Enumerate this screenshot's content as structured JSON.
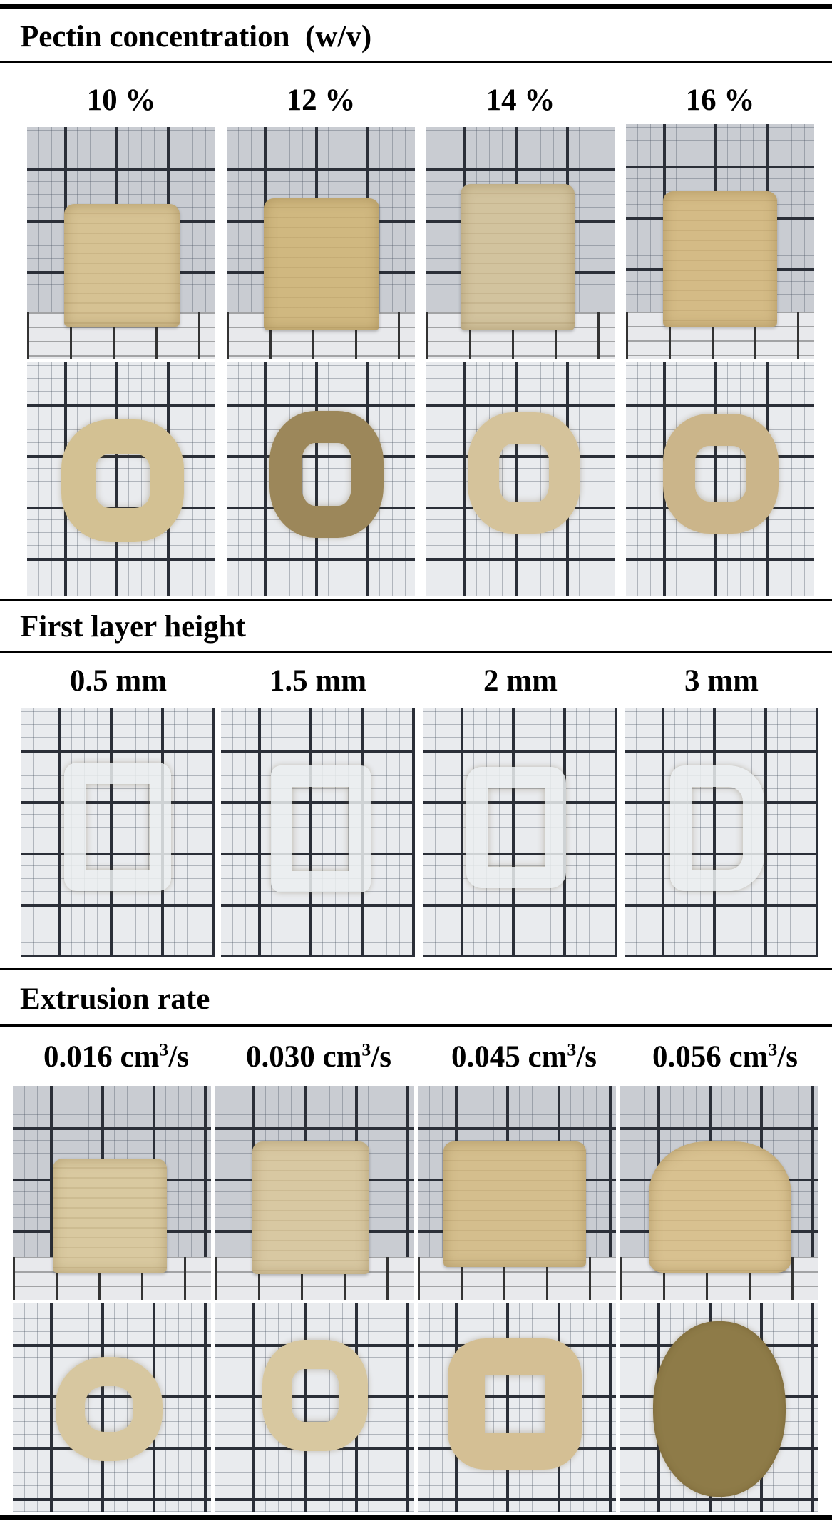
{
  "sections": {
    "pectin": {
      "title": "Pectin concentration  (w/v)",
      "labels": [
        "10 %",
        "12 %",
        "14 %",
        "16 %"
      ],
      "sample_colors": [
        "#d6c293",
        "#d0b880",
        "#d2c39e",
        "#d4bb86"
      ],
      "top_colors": [
        "#d3c193",
        "#9c875a",
        "#d5c39b",
        "#cbb58a"
      ]
    },
    "first_layer": {
      "title": "First layer height",
      "labels": [
        "0.5 mm",
        "1.5 mm",
        "2 mm",
        "3 mm"
      ],
      "sample_color": "#e6e8ea"
    },
    "extrusion": {
      "title": "Extrusion rate",
      "labels": [
        {
          "value": "0.016",
          "unit": " cm",
          "sup": "3",
          "tail": "/s"
        },
        {
          "value": "0.030",
          "unit": " cm",
          "sup": "3",
          "tail": "/s"
        },
        {
          "value": "0.045",
          "unit": " cm",
          "sup": "3",
          "tail": "/s"
        },
        {
          "value": "0.056",
          "unit": " cm",
          "sup": "3",
          "tail": "/s"
        }
      ],
      "sample_colors": [
        "#d9c9a0",
        "#d8c8a2",
        "#d4be8d",
        "#d8c190"
      ],
      "top_colors": [
        "#d7c7a0",
        "#d8c8a0",
        "#d4bf94",
        "#8e7b48"
      ]
    }
  }
}
